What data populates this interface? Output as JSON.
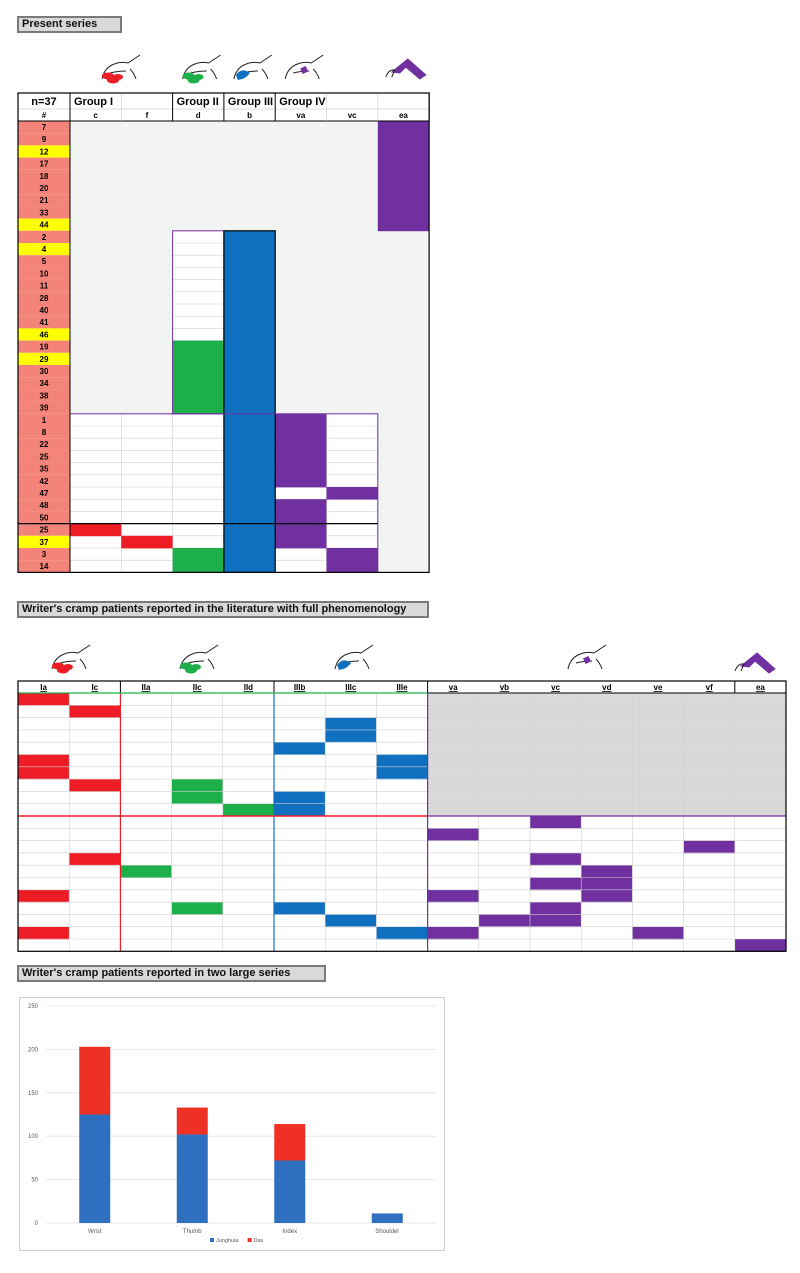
{
  "sections": {
    "present": "Present series",
    "literature": "Writer's cramp patients reported in the literature with full phenomenology",
    "large": "Writer's cramp patients reported in two large series"
  },
  "colors": {
    "red": "#ee1c24",
    "green": "#1db04a",
    "blue": "#1070c0",
    "purple": "#7030a0",
    "salmon": "#f4837a",
    "yellow": "#ffff00",
    "lightgrey": "#f2f4f2",
    "grey": "#d9d9d9"
  },
  "table1": {
    "n_label": "n=37",
    "hash_label": "#",
    "groups": [
      "Group I",
      "Group II",
      "Group III",
      "Group IV"
    ],
    "columns": [
      "c",
      "f",
      "d",
      "b",
      "va",
      "vc",
      "ea"
    ],
    "column_icons": [
      "red-fingers-hand-icon",
      "",
      "green-fingers-hand-icon",
      "blue-thumb-hand-icon",
      "purple-wrist-hand-icon",
      "",
      "purple-arm-icon"
    ],
    "patients": [
      {
        "id": "7",
        "highlight": false,
        "fills": [
          "",
          "",
          "",
          "",
          "",
          "",
          "purple"
        ]
      },
      {
        "id": "9",
        "highlight": false,
        "fills": [
          "",
          "",
          "",
          "",
          "",
          "",
          "purple"
        ]
      },
      {
        "id": "12",
        "highlight": true,
        "fills": [
          "",
          "",
          "",
          "",
          "",
          "",
          "purple"
        ]
      },
      {
        "id": "17",
        "highlight": false,
        "fills": [
          "",
          "",
          "",
          "",
          "",
          "",
          "purple"
        ]
      },
      {
        "id": "18",
        "highlight": false,
        "fills": [
          "",
          "",
          "",
          "",
          "",
          "",
          "purple"
        ]
      },
      {
        "id": "20",
        "highlight": false,
        "fills": [
          "",
          "",
          "",
          "",
          "",
          "",
          "purple"
        ]
      },
      {
        "id": "21",
        "highlight": false,
        "fills": [
          "",
          "",
          "",
          "",
          "",
          "",
          "purple"
        ]
      },
      {
        "id": "33",
        "highlight": false,
        "fills": [
          "",
          "",
          "",
          "",
          "",
          "",
          "purple"
        ]
      },
      {
        "id": "44",
        "highlight": true,
        "fills": [
          "",
          "",
          "",
          "",
          "",
          "",
          "purple"
        ]
      },
      {
        "id": "2",
        "highlight": false,
        "fills": [
          "",
          "",
          "",
          "blue",
          "",
          "",
          ""
        ]
      },
      {
        "id": "4",
        "highlight": true,
        "fills": [
          "",
          "",
          "",
          "blue",
          "",
          "",
          ""
        ]
      },
      {
        "id": "5",
        "highlight": false,
        "fills": [
          "",
          "",
          "",
          "blue",
          "",
          "",
          ""
        ]
      },
      {
        "id": "10",
        "highlight": false,
        "fills": [
          "",
          "",
          "",
          "blue",
          "",
          "",
          ""
        ]
      },
      {
        "id": "11",
        "highlight": false,
        "fills": [
          "",
          "",
          "",
          "blue",
          "",
          "",
          ""
        ]
      },
      {
        "id": "28",
        "highlight": false,
        "fills": [
          "",
          "",
          "",
          "blue",
          "",
          "",
          ""
        ]
      },
      {
        "id": "40",
        "highlight": false,
        "fills": [
          "",
          "",
          "",
          "blue",
          "",
          "",
          ""
        ]
      },
      {
        "id": "41",
        "highlight": false,
        "fills": [
          "",
          "",
          "",
          "blue",
          "",
          "",
          ""
        ]
      },
      {
        "id": "46",
        "highlight": true,
        "fills": [
          "",
          "",
          "",
          "blue",
          "",
          "",
          ""
        ]
      },
      {
        "id": "19",
        "highlight": false,
        "fills": [
          "",
          "",
          "green",
          "blue",
          "",
          "",
          ""
        ]
      },
      {
        "id": "29",
        "highlight": true,
        "fills": [
          "",
          "",
          "green",
          "blue",
          "",
          "",
          ""
        ]
      },
      {
        "id": "30",
        "highlight": false,
        "fills": [
          "",
          "",
          "green",
          "blue",
          "",
          "",
          ""
        ]
      },
      {
        "id": "34",
        "highlight": false,
        "fills": [
          "",
          "",
          "green",
          "blue",
          "",
          "",
          ""
        ]
      },
      {
        "id": "38",
        "highlight": false,
        "fills": [
          "",
          "",
          "green",
          "blue",
          "",
          "",
          ""
        ]
      },
      {
        "id": "39",
        "highlight": false,
        "fills": [
          "",
          "",
          "green",
          "blue",
          "",
          "",
          ""
        ]
      },
      {
        "id": "1",
        "highlight": false,
        "fills": [
          "",
          "",
          "",
          "blue",
          "purple",
          "",
          ""
        ]
      },
      {
        "id": "8",
        "highlight": false,
        "fills": [
          "",
          "",
          "",
          "blue",
          "purple",
          "",
          ""
        ]
      },
      {
        "id": "22",
        "highlight": false,
        "fills": [
          "",
          "",
          "",
          "blue",
          "purple",
          "",
          ""
        ]
      },
      {
        "id": "25",
        "highlight": false,
        "fills": [
          "",
          "",
          "",
          "blue",
          "purple",
          "",
          ""
        ]
      },
      {
        "id": "35",
        "highlight": false,
        "fills": [
          "",
          "",
          "",
          "blue",
          "purple",
          "",
          ""
        ]
      },
      {
        "id": "42",
        "highlight": false,
        "fills": [
          "",
          "",
          "",
          "blue",
          "purple",
          "",
          ""
        ]
      },
      {
        "id": "47",
        "highlight": false,
        "fills": [
          "",
          "",
          "",
          "blue",
          "",
          "purple",
          ""
        ]
      },
      {
        "id": "48",
        "highlight": false,
        "fills": [
          "",
          "",
          "",
          "blue",
          "purple",
          "",
          ""
        ]
      },
      {
        "id": "50",
        "highlight": false,
        "fills": [
          "",
          "",
          "",
          "blue",
          "purple",
          "",
          ""
        ]
      },
      {
        "id": "25",
        "highlight": false,
        "fills": [
          "red",
          "",
          "",
          "blue",
          "purple",
          "",
          ""
        ]
      },
      {
        "id": "37",
        "highlight": true,
        "fills": [
          "",
          "red",
          "",
          "blue",
          "purple",
          "",
          ""
        ]
      },
      {
        "id": "3",
        "highlight": false,
        "fills": [
          "",
          "",
          "green",
          "blue",
          "",
          "purple",
          ""
        ]
      },
      {
        "id": "14",
        "highlight": false,
        "fills": [
          "",
          "",
          "green",
          "blue",
          "",
          "purple",
          ""
        ]
      }
    ]
  },
  "table2": {
    "columns": [
      "Ia",
      "Ic",
      "IIa",
      "IIc",
      "IId",
      "IIIb",
      "IIIc",
      "IIIe",
      "va",
      "vb",
      "vc",
      "vd",
      "ve",
      "vf",
      "ea"
    ],
    "column_icons": [
      "red-fingers-hand-icon",
      "green-fingers-hand-icon",
      "blue-thumb-hand-icon",
      "purple-wrist-hand-icon",
      "purple-arm-icon"
    ],
    "rows": [
      [
        "red",
        "",
        "",
        "",
        "",
        "",
        "",
        "",
        "grey",
        "grey",
        "grey",
        "grey",
        "grey",
        "grey",
        "grey"
      ],
      [
        "",
        "red",
        "",
        "",
        "",
        "",
        "",
        "",
        "grey",
        "grey",
        "grey",
        "grey",
        "grey",
        "grey",
        "grey"
      ],
      [
        "",
        "",
        "",
        "",
        "",
        "",
        "blue",
        "",
        "grey",
        "grey",
        "grey",
        "grey",
        "grey",
        "grey",
        "grey"
      ],
      [
        "",
        "",
        "",
        "",
        "",
        "",
        "blue",
        "",
        "grey",
        "grey",
        "grey",
        "grey",
        "grey",
        "grey",
        "grey"
      ],
      [
        "",
        "",
        "",
        "",
        "",
        "blue",
        "",
        "",
        "grey",
        "grey",
        "grey",
        "grey",
        "grey",
        "grey",
        "grey"
      ],
      [
        "red",
        "",
        "",
        "",
        "",
        "",
        "",
        "blue",
        "grey",
        "grey",
        "grey",
        "grey",
        "grey",
        "grey",
        "grey"
      ],
      [
        "red",
        "",
        "",
        "",
        "",
        "",
        "",
        "blue",
        "grey",
        "grey",
        "grey",
        "grey",
        "grey",
        "grey",
        "grey"
      ],
      [
        "",
        "red",
        "",
        "green",
        "",
        "",
        "",
        "",
        "grey",
        "grey",
        "grey",
        "grey",
        "grey",
        "grey",
        "grey"
      ],
      [
        "",
        "",
        "",
        "green",
        "",
        "blue",
        "",
        "",
        "grey",
        "grey",
        "grey",
        "grey",
        "grey",
        "grey",
        "grey"
      ],
      [
        "",
        "",
        "",
        "",
        "green",
        "blue",
        "",
        "",
        "grey",
        "grey",
        "grey",
        "grey",
        "grey",
        "grey",
        "grey"
      ],
      [
        "",
        "",
        "",
        "",
        "",
        "",
        "",
        "",
        "",
        "",
        "purple",
        "",
        "",
        "",
        ""
      ],
      [
        "",
        "",
        "",
        "",
        "",
        "",
        "",
        "",
        "purple",
        "",
        "",
        "",
        "",
        "",
        ""
      ],
      [
        "",
        "",
        "",
        "",
        "",
        "",
        "",
        "",
        "",
        "",
        "",
        "",
        "",
        "purple",
        ""
      ],
      [
        "",
        "red",
        "",
        "",
        "",
        "",
        "",
        "",
        "",
        "",
        "purple",
        "",
        "",
        "",
        ""
      ],
      [
        "",
        "",
        "green",
        "",
        "",
        "",
        "",
        "",
        "",
        "",
        "",
        "purple",
        "",
        "",
        ""
      ],
      [
        "",
        "",
        "",
        "",
        "",
        "",
        "",
        "",
        "",
        "",
        "purple",
        "purple",
        "",
        "",
        ""
      ],
      [
        "red",
        "",
        "",
        "",
        "",
        "",
        "",
        "",
        "purple",
        "",
        "",
        "purple",
        "",
        "",
        ""
      ],
      [
        "",
        "",
        "",
        "green",
        "",
        "blue",
        "",
        "",
        "",
        "",
        "purple",
        "",
        "",
        "",
        ""
      ],
      [
        "",
        "",
        "",
        "",
        "",
        "",
        "blue",
        "",
        "",
        "purple",
        "purple",
        "",
        "",
        "",
        ""
      ],
      [
        "red",
        "",
        "",
        "",
        "",
        "",
        "",
        "blue",
        "purple",
        "",
        "",
        "",
        "purple",
        "",
        ""
      ],
      [
        "",
        "",
        "",
        "",
        "",
        "",
        "",
        "",
        "",
        "",
        "",
        "",
        "",
        "",
        "purple"
      ]
    ]
  },
  "chart_data": {
    "type": "bar",
    "stacked": true,
    "categories": [
      "Wrist",
      "Thumb",
      "Index",
      "Shoulder"
    ],
    "series": [
      {
        "name": "Junghuia",
        "color": "#2e6fbf",
        "values": [
          125,
          102,
          72,
          11
        ]
      },
      {
        "name": "Das",
        "color": "#ee3124",
        "values": [
          78,
          31,
          42,
          0
        ]
      }
    ],
    "yticks": [
      "0",
      "50",
      "100",
      "150",
      "200",
      "250"
    ],
    "ylim": [
      0,
      250
    ],
    "gridlines": true,
    "legend_position": "bottom",
    "title": "",
    "xlabel": "",
    "ylabel": ""
  }
}
